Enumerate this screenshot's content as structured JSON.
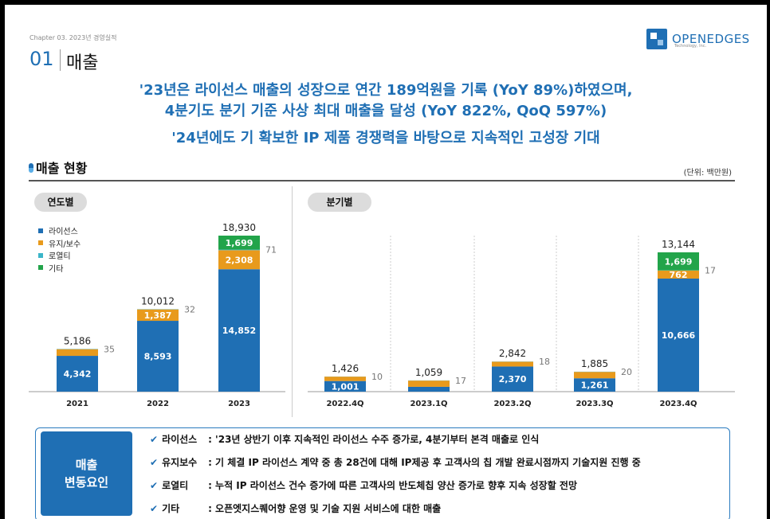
{
  "header": {
    "chapter": "Chapter 03. 2023년 경영실적",
    "section_number": "01",
    "section_title": "매출",
    "logo_text": "OPENEDGES",
    "logo_sub": "Technology, Inc."
  },
  "headlines": [
    "'23년은 라이선스 매출의 성장으로 연간 189억원을 기록 (YoY 89%)하였으며,",
    "4분기도 분기 기준 사상 최대 매출을 달성 (YoY 822%, QoQ 597%)",
    "'24년에도 기 확보한 IP 제품 경쟁력을 바탕으로 지속적인 고성장 기대"
  ],
  "subtitle": "매출 현황",
  "unit": "(단위: 백만원)",
  "colors": {
    "license": "#1f6fb4",
    "maintenance": "#e89a1c",
    "royalty": "#3bb5c9",
    "other": "#22a44a",
    "brand": "#1f6fb4"
  },
  "chart_data": [
    {
      "type": "bar",
      "pill": "연도별",
      "stacked": true,
      "categories": [
        "2021",
        "2022",
        "2023"
      ],
      "series": [
        {
          "name": "라이선스",
          "values": [
            4342,
            8593,
            14852
          ]
        },
        {
          "name": "유지/보수",
          "values": [
            808,
            1387,
            2308
          ]
        },
        {
          "name": "로열티",
          "values": [
            35,
            32,
            71
          ]
        },
        {
          "name": "기타",
          "values": [
            0,
            0,
            1699
          ]
        }
      ],
      "totals": [
        5186,
        10012,
        18930
      ],
      "legend": "top-left"
    },
    {
      "type": "bar",
      "pill": "분기별",
      "stacked": true,
      "categories": [
        "2022.4Q",
        "2023.1Q",
        "2023.2Q",
        "2023.3Q",
        "2023.4Q"
      ],
      "series": [
        {
          "name": "라이선스",
          "values": [
            1001,
            455,
            2370,
            1261,
            10666
          ]
        },
        {
          "name": "유지/보수",
          "values": [
            415,
            587,
            454,
            604,
            762
          ]
        },
        {
          "name": "로열티",
          "values": [
            10,
            17,
            18,
            20,
            17
          ]
        },
        {
          "name": "기타",
          "values": [
            0,
            0,
            0,
            0,
            1699
          ]
        }
      ],
      "totals": [
        1426,
        1059,
        2842,
        1885,
        13144
      ]
    }
  ],
  "factors": {
    "label_line1": "매출",
    "label_line2": "변동요인",
    "items": [
      {
        "key": "라이선스",
        "text": ": '23년 상반기 이후 지속적인 라이선스 수주 증가로, 4분기부터 본격 매출로 인식"
      },
      {
        "key": "유지보수",
        "text": ": 기 체결 IP 라이선스 계약 중 총 28건에 대해 IP제공 후 고객사의 칩 개발 완료시점까지 기술지원 진행 중"
      },
      {
        "key": "로열티",
        "text": ": 누적 IP 라이선스 건수 증가에 따른 고객사의 반도체칩 양산 증가로 향후 지속 성장할 전망"
      },
      {
        "key": "기타",
        "text": ": 오픈엣지스퀘어향 운영 및 기술 지원 서비스에 대한 매출"
      }
    ]
  }
}
